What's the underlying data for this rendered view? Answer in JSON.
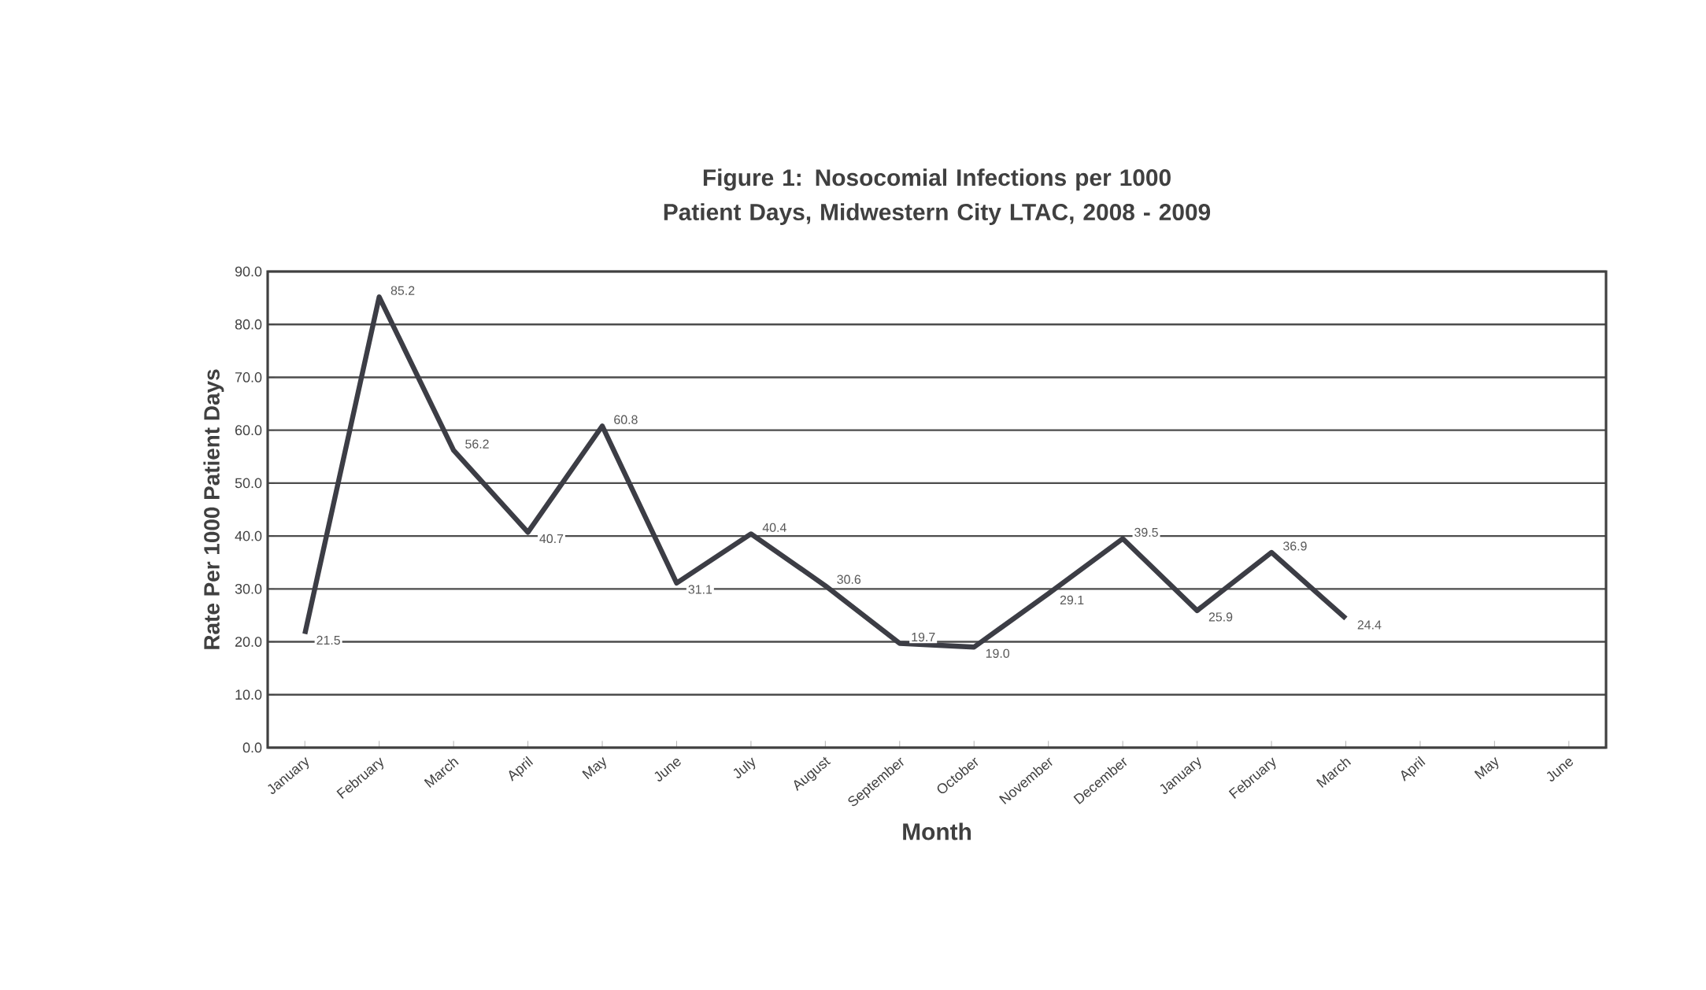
{
  "chart_data": {
    "type": "line",
    "title": "Figure 1: Nosocomial Infections per 1000 Patient Days, Midwestern City LTAC, 2008 - 2009",
    "xlabel": "Month",
    "ylabel": "Rate Per 1000 Patient Days",
    "categories": [
      "January",
      "February",
      "March",
      "April",
      "May",
      "June",
      "July",
      "August",
      "September",
      "October",
      "November",
      "December",
      "January",
      "February",
      "March",
      "April",
      "May",
      "June"
    ],
    "series": [
      {
        "color": "#3c3d45",
        "values": [
          21.5,
          85.2,
          56.2,
          40.7,
          60.8,
          31.1,
          40.4,
          30.6,
          19.7,
          19.0,
          29.1,
          39.5,
          25.9,
          36.9,
          24.4,
          null,
          null,
          null
        ],
        "value_labels": [
          "21.5",
          "85.2",
          "56.2",
          "40.7",
          "60.8",
          "31.1",
          "40.4",
          "30.6",
          "19.7",
          "19.0",
          "29.1",
          "39.5",
          "25.9",
          "36.9",
          "24.4",
          null,
          null,
          null
        ]
      }
    ],
    "ylim": [
      0,
      90
    ],
    "yticks": [
      {
        "value": 0,
        "label": "0.0"
      },
      {
        "value": 10,
        "label": "10.0"
      },
      {
        "value": 20,
        "label": "20.0"
      },
      {
        "value": 30,
        "label": "30.0"
      },
      {
        "value": 40,
        "label": "40.0"
      },
      {
        "value": 50,
        "label": "50.0"
      },
      {
        "value": 60,
        "label": "60.0"
      },
      {
        "value": 70,
        "label": "70.0"
      },
      {
        "value": 80,
        "label": "80.0"
      },
      {
        "value": 90,
        "label": "90.0"
      }
    ],
    "grid": "y",
    "line_style": "solid"
  }
}
